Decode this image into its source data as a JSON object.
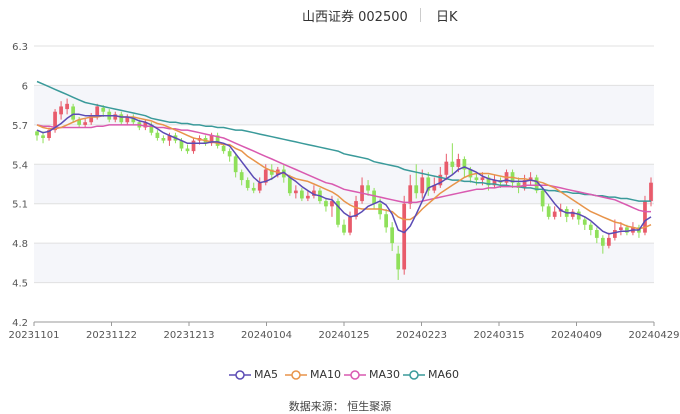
{
  "header": {
    "title": "山西证券 002500",
    "period": "日K"
  },
  "source": "数据来源： 恒生聚源",
  "colors": {
    "up": "#e85b6b",
    "down": "#8fe05a",
    "ma5": "#5b4bb5",
    "ma10": "#e8944a",
    "ma30": "#d95ab0",
    "ma60": "#3a9a9a",
    "band": "#f5f6fa",
    "grid": "#e0e0e0"
  },
  "chart_data": {
    "type": "candlestick",
    "yticks": [
      4.2,
      4.5,
      4.8,
      5.1,
      5.4,
      5.7,
      6,
      6.3
    ],
    "ylim": [
      4.2,
      6.3
    ],
    "xticks": [
      "20231101",
      "20231122",
      "20231213",
      "20240104",
      "20240125",
      "20240223",
      "20240315",
      "20240409",
      "20240429"
    ],
    "legend": [
      "MA5",
      "MA10",
      "MA30",
      "MA60"
    ],
    "candles": [
      [
        5.65,
        5.62,
        5.66,
        5.58
      ],
      [
        5.62,
        5.6,
        5.65,
        5.56
      ],
      [
        5.6,
        5.66,
        5.68,
        5.58
      ],
      [
        5.66,
        5.8,
        5.82,
        5.64
      ],
      [
        5.78,
        5.84,
        5.88,
        5.74
      ],
      [
        5.82,
        5.86,
        5.9,
        5.78
      ],
      [
        5.84,
        5.74,
        5.86,
        5.72
      ],
      [
        5.74,
        5.7,
        5.76,
        5.68
      ],
      [
        5.7,
        5.72,
        5.75,
        5.68
      ],
      [
        5.72,
        5.76,
        5.79,
        5.7
      ],
      [
        5.76,
        5.84,
        5.86,
        5.74
      ],
      [
        5.83,
        5.8,
        5.85,
        5.76
      ],
      [
        5.8,
        5.74,
        5.82,
        5.72
      ],
      [
        5.74,
        5.78,
        5.8,
        5.72
      ],
      [
        5.78,
        5.72,
        5.8,
        5.7
      ],
      [
        5.72,
        5.76,
        5.78,
        5.7
      ],
      [
        5.76,
        5.72,
        5.78,
        5.7
      ],
      [
        5.72,
        5.68,
        5.74,
        5.66
      ],
      [
        5.68,
        5.72,
        5.74,
        5.66
      ],
      [
        5.7,
        5.64,
        5.72,
        5.62
      ],
      [
        5.64,
        5.6,
        5.66,
        5.58
      ],
      [
        5.6,
        5.58,
        5.62,
        5.56
      ],
      [
        5.58,
        5.62,
        5.64,
        5.54
      ],
      [
        5.62,
        5.58,
        5.64,
        5.56
      ],
      [
        5.58,
        5.52,
        5.6,
        5.5
      ],
      [
        5.52,
        5.5,
        5.55,
        5.48
      ],
      [
        5.5,
        5.58,
        5.6,
        5.48
      ],
      [
        5.58,
        5.6,
        5.62,
        5.55
      ],
      [
        5.6,
        5.56,
        5.62,
        5.54
      ],
      [
        5.56,
        5.62,
        5.64,
        5.54
      ],
      [
        5.62,
        5.54,
        5.64,
        5.52
      ],
      [
        5.54,
        5.5,
        5.56,
        5.48
      ],
      [
        5.5,
        5.46,
        5.52,
        5.42
      ],
      [
        5.46,
        5.34,
        5.48,
        5.3
      ],
      [
        5.34,
        5.28,
        5.36,
        5.24
      ],
      [
        5.28,
        5.22,
        5.3,
        5.2
      ],
      [
        5.22,
        5.2,
        5.26,
        5.18
      ],
      [
        5.2,
        5.26,
        5.3,
        5.18
      ],
      [
        5.26,
        5.36,
        5.4,
        5.24
      ],
      [
        5.36,
        5.32,
        5.4,
        5.28
      ],
      [
        5.32,
        5.36,
        5.38,
        5.3
      ],
      [
        5.36,
        5.3,
        5.4,
        5.26
      ],
      [
        5.3,
        5.18,
        5.32,
        5.16
      ],
      [
        5.18,
        5.2,
        5.24,
        5.14
      ],
      [
        5.2,
        5.14,
        5.22,
        5.12
      ],
      [
        5.14,
        5.16,
        5.2,
        5.12
      ],
      [
        5.16,
        5.2,
        5.24,
        5.14
      ],
      [
        5.2,
        5.12,
        5.22,
        5.1
      ],
      [
        5.12,
        5.08,
        5.14,
        5.04
      ],
      [
        5.08,
        5.12,
        5.16,
        5.0
      ],
      [
        5.12,
        4.94,
        5.14,
        4.92
      ],
      [
        4.94,
        4.88,
        4.98,
        4.86
      ],
      [
        4.88,
        5.0,
        5.04,
        4.86
      ],
      [
        5.0,
        5.12,
        5.16,
        4.98
      ],
      [
        5.12,
        5.24,
        5.3,
        5.1
      ],
      [
        5.24,
        5.2,
        5.28,
        5.16
      ],
      [
        5.2,
        5.1,
        5.22,
        5.06
      ],
      [
        5.1,
        5.02,
        5.14,
        4.98
      ],
      [
        5.02,
        4.92,
        5.06,
        4.88
      ],
      [
        4.92,
        4.8,
        4.96,
        4.74
      ],
      [
        4.72,
        4.6,
        4.78,
        4.52
      ],
      [
        4.6,
        5.1,
        5.16,
        4.56
      ],
      [
        5.1,
        5.24,
        5.32,
        5.06
      ],
      [
        5.24,
        5.18,
        5.4,
        5.14
      ],
      [
        5.18,
        5.3,
        5.36,
        5.14
      ],
      [
        5.3,
        5.2,
        5.34,
        5.16
      ],
      [
        5.2,
        5.24,
        5.3,
        5.18
      ],
      [
        5.24,
        5.32,
        5.38,
        5.22
      ],
      [
        5.32,
        5.42,
        5.48,
        5.28
      ],
      [
        5.42,
        5.38,
        5.56,
        5.32
      ],
      [
        5.38,
        5.44,
        5.48,
        5.34
      ],
      [
        5.44,
        5.36,
        5.46,
        5.3
      ],
      [
        5.36,
        5.3,
        5.38,
        5.26
      ],
      [
        5.3,
        5.28,
        5.34,
        5.24
      ],
      [
        5.28,
        5.3,
        5.34,
        5.24
      ],
      [
        5.3,
        5.24,
        5.32,
        5.2
      ],
      [
        5.24,
        5.28,
        5.32,
        5.22
      ],
      [
        5.28,
        5.26,
        5.3,
        5.22
      ],
      [
        5.26,
        5.34,
        5.36,
        5.24
      ],
      [
        5.34,
        5.26,
        5.36,
        5.22
      ],
      [
        5.26,
        5.22,
        5.3,
        5.18
      ],
      [
        5.22,
        5.28,
        5.32,
        5.2
      ],
      [
        5.28,
        5.3,
        5.34,
        5.24
      ],
      [
        5.3,
        5.2,
        5.32,
        5.18
      ],
      [
        5.2,
        5.08,
        5.22,
        5.04
      ],
      [
        5.08,
        5.0,
        5.1,
        4.98
      ],
      [
        5.0,
        5.04,
        5.08,
        4.98
      ],
      [
        5.04,
        5.06,
        5.1,
        5.0
      ],
      [
        5.06,
        5.0,
        5.08,
        4.96
      ],
      [
        5.0,
        5.04,
        5.06,
        4.98
      ],
      [
        5.04,
        4.98,
        5.06,
        4.94
      ],
      [
        4.98,
        4.94,
        5.0,
        4.9
      ],
      [
        4.94,
        4.9,
        4.96,
        4.86
      ],
      [
        4.9,
        4.84,
        4.92,
        4.8
      ],
      [
        4.84,
        4.78,
        4.86,
        4.72
      ],
      [
        4.78,
        4.84,
        4.88,
        4.76
      ],
      [
        4.84,
        4.9,
        4.98,
        4.82
      ],
      [
        4.9,
        4.92,
        4.96,
        4.86
      ],
      [
        4.92,
        4.88,
        4.94,
        4.86
      ],
      [
        4.88,
        4.92,
        4.96,
        4.86
      ],
      [
        4.92,
        4.88,
        4.94,
        4.84
      ],
      [
        4.88,
        5.12,
        5.16,
        4.86
      ],
      [
        5.12,
        5.26,
        5.3,
        5.08
      ]
    ],
    "ma5": [
      5.66,
      5.64,
      5.65,
      5.68,
      5.71,
      5.75,
      5.78,
      5.78,
      5.77,
      5.77,
      5.77,
      5.77,
      5.77,
      5.77,
      5.76,
      5.76,
      5.75,
      5.73,
      5.72,
      5.7,
      5.67,
      5.64,
      5.62,
      5.6,
      5.58,
      5.56,
      5.56,
      5.56,
      5.56,
      5.57,
      5.57,
      5.56,
      5.54,
      5.48,
      5.42,
      5.36,
      5.3,
      5.26,
      5.27,
      5.29,
      5.32,
      5.34,
      5.3,
      5.27,
      5.23,
      5.2,
      5.17,
      5.16,
      5.14,
      5.13,
      5.08,
      5.03,
      5.0,
      5.01,
      5.04,
      5.08,
      5.1,
      5.12,
      5.09,
      5.02,
      4.9,
      4.88,
      4.93,
      5.02,
      5.12,
      5.22,
      5.24,
      5.26,
      5.29,
      5.32,
      5.36,
      5.38,
      5.36,
      5.34,
      5.31,
      5.29,
      5.28,
      5.27,
      5.28,
      5.27,
      5.27,
      5.27,
      5.28,
      5.27,
      5.22,
      5.16,
      5.1,
      5.05,
      5.03,
      5.03,
      5.02,
      5.0,
      4.97,
      4.93,
      4.89,
      4.87,
      4.88,
      4.89,
      4.89,
      4.9,
      4.9,
      4.97,
      5.0
    ],
    "ma10": [
      5.7,
      5.68,
      5.67,
      5.67,
      5.68,
      5.7,
      5.72,
      5.74,
      5.75,
      5.76,
      5.76,
      5.77,
      5.77,
      5.77,
      5.76,
      5.76,
      5.76,
      5.75,
      5.74,
      5.73,
      5.71,
      5.7,
      5.68,
      5.66,
      5.64,
      5.62,
      5.6,
      5.59,
      5.58,
      5.57,
      5.56,
      5.55,
      5.55,
      5.52,
      5.5,
      5.46,
      5.43,
      5.4,
      5.37,
      5.35,
      5.34,
      5.33,
      5.31,
      5.29,
      5.28,
      5.27,
      5.25,
      5.23,
      5.21,
      5.19,
      5.16,
      5.12,
      5.09,
      5.07,
      5.06,
      5.06,
      5.06,
      5.06,
      5.05,
      5.04,
      5.0,
      4.98,
      4.98,
      5.01,
      5.06,
      5.1,
      5.14,
      5.18,
      5.21,
      5.24,
      5.27,
      5.3,
      5.32,
      5.33,
      5.33,
      5.33,
      5.32,
      5.31,
      5.3,
      5.3,
      5.29,
      5.29,
      5.28,
      5.27,
      5.26,
      5.24,
      5.22,
      5.19,
      5.16,
      5.13,
      5.1,
      5.07,
      5.04,
      5.02,
      5.0,
      4.98,
      4.96,
      4.95,
      4.93,
      4.92,
      4.91,
      4.92,
      4.94
    ],
    "ma30": [
      5.7,
      5.69,
      5.69,
      5.68,
      5.68,
      5.68,
      5.68,
      5.68,
      5.68,
      5.68,
      5.69,
      5.69,
      5.7,
      5.7,
      5.7,
      5.7,
      5.7,
      5.7,
      5.69,
      5.69,
      5.68,
      5.68,
      5.67,
      5.67,
      5.66,
      5.66,
      5.65,
      5.64,
      5.63,
      5.62,
      5.61,
      5.6,
      5.58,
      5.56,
      5.54,
      5.52,
      5.5,
      5.48,
      5.46,
      5.44,
      5.42,
      5.4,
      5.38,
      5.36,
      5.34,
      5.32,
      5.3,
      5.28,
      5.26,
      5.25,
      5.23,
      5.21,
      5.2,
      5.19,
      5.18,
      5.17,
      5.16,
      5.15,
      5.14,
      5.13,
      5.12,
      5.11,
      5.11,
      5.11,
      5.12,
      5.13,
      5.14,
      5.15,
      5.16,
      5.17,
      5.18,
      5.19,
      5.2,
      5.21,
      5.21,
      5.22,
      5.22,
      5.23,
      5.23,
      5.23,
      5.23,
      5.24,
      5.24,
      5.24,
      5.24,
      5.24,
      5.23,
      5.22,
      5.21,
      5.2,
      5.19,
      5.18,
      5.17,
      5.16,
      5.15,
      5.14,
      5.13,
      5.11,
      5.09,
      5.07,
      5.05,
      5.04,
      5.04
    ],
    "ma60": [
      6.03,
      6.01,
      5.99,
      5.97,
      5.95,
      5.93,
      5.91,
      5.89,
      5.87,
      5.86,
      5.85,
      5.84,
      5.83,
      5.82,
      5.81,
      5.8,
      5.79,
      5.78,
      5.77,
      5.75,
      5.74,
      5.73,
      5.72,
      5.72,
      5.71,
      5.71,
      5.7,
      5.7,
      5.69,
      5.69,
      5.68,
      5.68,
      5.67,
      5.66,
      5.66,
      5.65,
      5.64,
      5.63,
      5.62,
      5.61,
      5.6,
      5.59,
      5.58,
      5.57,
      5.56,
      5.55,
      5.54,
      5.53,
      5.52,
      5.51,
      5.5,
      5.48,
      5.47,
      5.46,
      5.45,
      5.44,
      5.42,
      5.41,
      5.4,
      5.39,
      5.38,
      5.36,
      5.35,
      5.34,
      5.33,
      5.32,
      5.31,
      5.3,
      5.29,
      5.28,
      5.28,
      5.27,
      5.27,
      5.26,
      5.26,
      5.25,
      5.25,
      5.24,
      5.24,
      5.23,
      5.23,
      5.22,
      5.22,
      5.21,
      5.21,
      5.2,
      5.2,
      5.19,
      5.19,
      5.18,
      5.18,
      5.17,
      5.17,
      5.16,
      5.16,
      5.15,
      5.15,
      5.14,
      5.14,
      5.13,
      5.12,
      5.12,
      5.12
    ]
  }
}
